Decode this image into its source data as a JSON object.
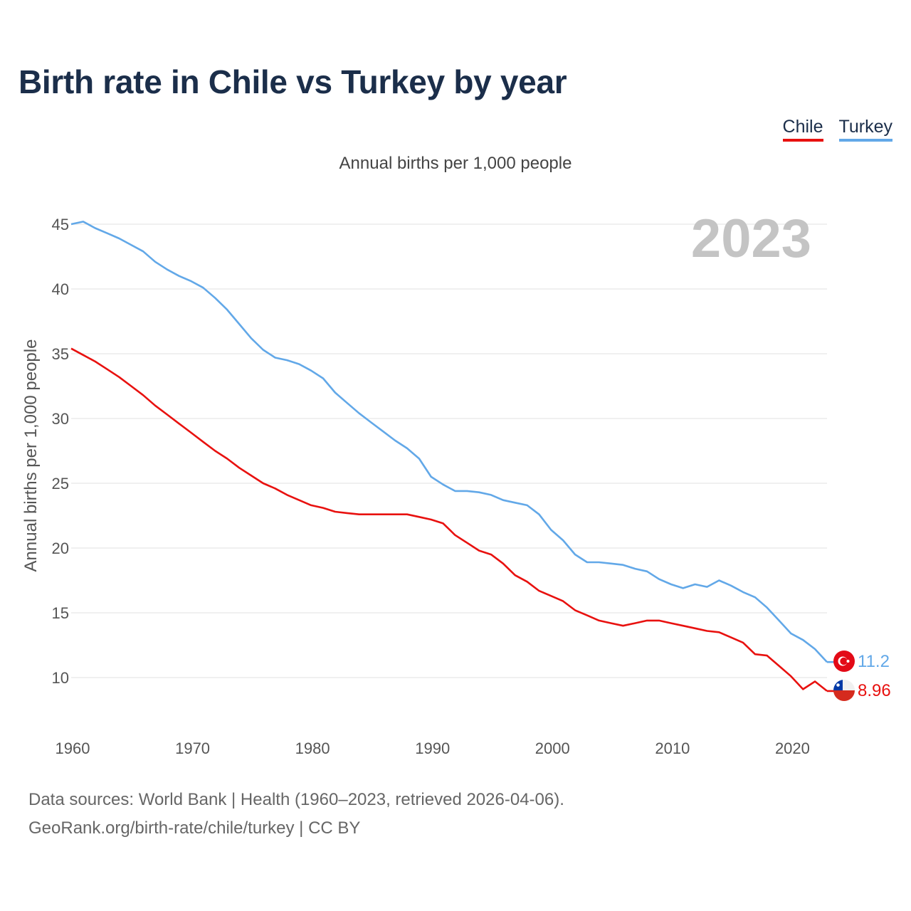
{
  "title": "Birth rate in Chile vs Turkey by year",
  "subtitle": "Annual births per 1,000 people",
  "year_label": "2023",
  "legend": [
    {
      "label": "Chile",
      "color": "#e8110f"
    },
    {
      "label": "Turkey",
      "color": "#62a8e8"
    }
  ],
  "footer": {
    "source": "Data sources: World Bank | Health (1960–2023, retrieved 2026-04-06).",
    "credit": "GeoRank.org/birth-rate/chile/turkey | CC BY"
  },
  "chart_data": {
    "type": "line",
    "title": "Birth rate in Chile vs Turkey by year",
    "subtitle": "Annual births per 1,000 people",
    "xlabel": "",
    "ylabel": "Annual births per 1,000 people",
    "xlim": [
      1960,
      2023
    ],
    "ylim": [
      6,
      46
    ],
    "grid": true,
    "legend_position": "top-right",
    "x_ticks": [
      1960,
      1970,
      1980,
      1990,
      2000,
      2010,
      2020
    ],
    "y_ticks": [
      10,
      15,
      20,
      25,
      30,
      35,
      40,
      45
    ],
    "x": [
      1960,
      1961,
      1962,
      1963,
      1964,
      1965,
      1966,
      1967,
      1968,
      1969,
      1970,
      1971,
      1972,
      1973,
      1974,
      1975,
      1976,
      1977,
      1978,
      1979,
      1980,
      1981,
      1982,
      1983,
      1984,
      1985,
      1986,
      1987,
      1988,
      1989,
      1990,
      1991,
      1992,
      1993,
      1994,
      1995,
      1996,
      1997,
      1998,
      1999,
      2000,
      2001,
      2002,
      2003,
      2004,
      2005,
      2006,
      2007,
      2008,
      2009,
      2010,
      2011,
      2012,
      2013,
      2014,
      2015,
      2016,
      2017,
      2018,
      2019,
      2020,
      2021,
      2022,
      2023
    ],
    "series": [
      {
        "name": "Chile",
        "color": "#e8110f",
        "end_label": "8.96",
        "values": [
          35.4,
          34.9,
          34.4,
          33.8,
          33.2,
          32.5,
          31.8,
          31.0,
          30.3,
          29.6,
          28.9,
          28.2,
          27.5,
          26.9,
          26.2,
          25.6,
          25.0,
          24.6,
          24.1,
          23.7,
          23.3,
          23.1,
          22.8,
          22.7,
          22.6,
          22.6,
          22.6,
          22.6,
          22.6,
          22.4,
          22.2,
          21.9,
          21.0,
          20.4,
          19.8,
          19.5,
          18.8,
          17.9,
          17.4,
          16.7,
          16.3,
          15.9,
          15.2,
          14.8,
          14.4,
          14.2,
          14.0,
          14.2,
          14.4,
          14.4,
          14.2,
          14.0,
          13.8,
          13.6,
          13.5,
          13.1,
          12.7,
          11.8,
          11.7,
          10.9,
          10.1,
          9.1,
          9.7,
          8.96
        ]
      },
      {
        "name": "Turkey",
        "color": "#62a8e8",
        "end_label": "11.2",
        "values": [
          45.0,
          45.2,
          44.7,
          44.3,
          43.9,
          43.4,
          42.9,
          42.1,
          41.5,
          41.0,
          40.6,
          40.1,
          39.3,
          38.4,
          37.3,
          36.2,
          35.3,
          34.7,
          34.5,
          34.2,
          33.7,
          33.1,
          32.0,
          31.2,
          30.4,
          29.7,
          29.0,
          28.3,
          27.7,
          26.9,
          25.5,
          24.9,
          24.4,
          24.4,
          24.3,
          24.1,
          23.7,
          23.5,
          23.3,
          22.6,
          21.4,
          20.6,
          19.5,
          18.9,
          18.9,
          18.8,
          18.7,
          18.4,
          18.2,
          17.6,
          17.2,
          16.9,
          17.2,
          17.0,
          17.5,
          17.1,
          16.6,
          16.2,
          15.4,
          14.4,
          13.4,
          12.9,
          12.2,
          11.2
        ]
      }
    ]
  }
}
